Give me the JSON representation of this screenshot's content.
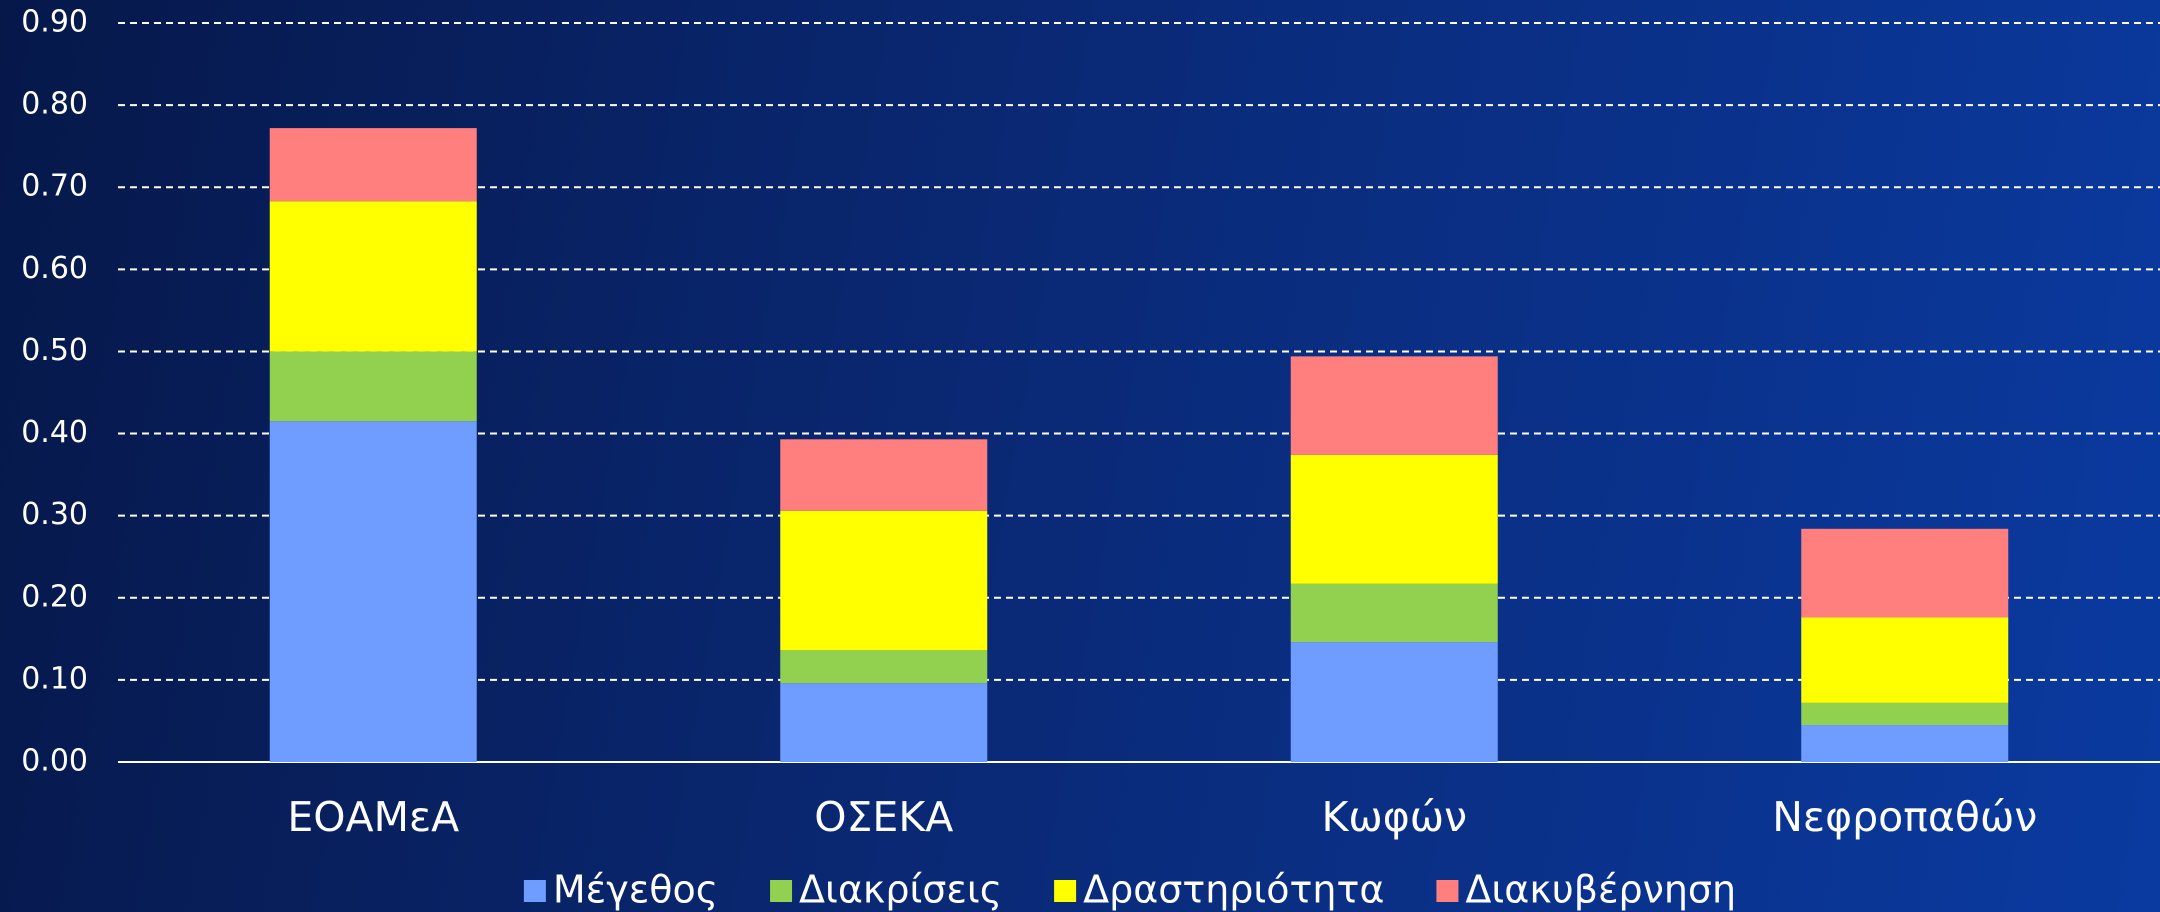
{
  "chart_data": {
    "type": "stacked_bar",
    "categories": [
      "ΕΟΑΜεΑ",
      "ΟΣΕΚΑ",
      "Κωφών",
      "Νεφροπαθών"
    ],
    "series": [
      {
        "name": "Μέγεθος",
        "color": "#6f9cff",
        "values": [
          0.415,
          0.096,
          0.146,
          0.045
        ]
      },
      {
        "name": "Διακρίσεις",
        "color": "#92d050",
        "values": [
          0.085,
          0.04,
          0.071,
          0.027
        ]
      },
      {
        "name": "Δραστηριότητα",
        "color": "#ffff00",
        "values": [
          0.183,
          0.17,
          0.157,
          0.104
        ]
      },
      {
        "name": "Διακυβέρνηση",
        "color": "#ff7f7f",
        "values": [
          0.089,
          0.087,
          0.12,
          0.108
        ]
      }
    ],
    "ylim": [
      0,
      0.9
    ],
    "yticks": [
      {
        "value": 0,
        "label": "0.00"
      },
      {
        "value": 0.1,
        "label": "0.10"
      },
      {
        "value": 0.2,
        "label": "0.20"
      },
      {
        "value": 0.3,
        "label": "0.30"
      },
      {
        "value": 0.4,
        "label": "0.40"
      },
      {
        "value": 0.5,
        "label": "0.50"
      },
      {
        "value": 0.6,
        "label": "0.60"
      },
      {
        "value": 0.7,
        "label": "0.70"
      },
      {
        "value": 0.8,
        "label": "0.80"
      },
      {
        "value": 0.9,
        "label": "0.90"
      }
    ],
    "grid": true,
    "legend": "bottom"
  }
}
